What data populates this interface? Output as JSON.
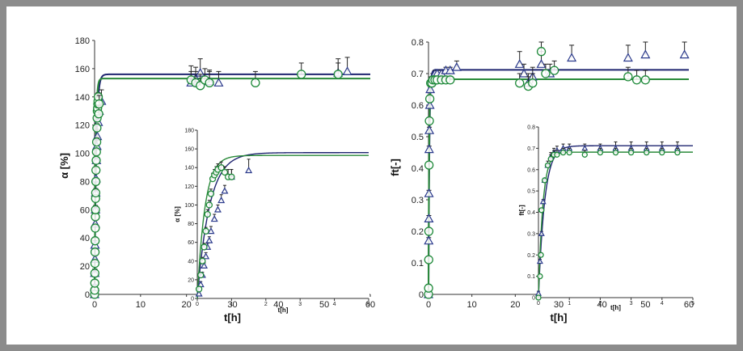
{
  "chart_data": [
    {
      "id": "alpha-main",
      "type": "scatter",
      "xlabel": "t[h]",
      "ylabel": "α [%]",
      "xlim": [
        0,
        60
      ],
      "ylim": [
        0,
        180
      ],
      "xticks": [
        "0",
        "10",
        "20",
        "30",
        "40",
        "50",
        "60"
      ],
      "yticks": [
        "0",
        "20",
        "40",
        "60",
        "80",
        "100",
        "120",
        "140",
        "160",
        "180"
      ],
      "colors": {
        "triangles": "#2b3a8c",
        "circles": "#1f8a3a",
        "fit_triangles": "#1f2470",
        "fit_circles": "#2a8a3a"
      },
      "fits": {
        "triangles": {
          "plateau": 156,
          "k": 2.8
        },
        "circles": {
          "plateau": 153,
          "k": 4.5
        }
      },
      "series": [
        {
          "marker": "triangle",
          "points": [
            [
              0,
              0
            ],
            [
              0.02,
              5
            ],
            [
              0.05,
              15
            ],
            [
              0.08,
              25
            ],
            [
              0.1,
              35
            ],
            [
              0.15,
              50
            ],
            [
              0.2,
              60
            ],
            [
              0.25,
              72
            ],
            [
              0.3,
              82
            ],
            [
              0.4,
              95
            ],
            [
              0.5,
              105
            ],
            [
              0.6,
              112
            ],
            [
              0.8,
              122
            ],
            [
              1,
              130
            ],
            [
              1.5,
              137
            ],
            [
              21,
              150
            ],
            [
              22,
              153
            ],
            [
              23,
              157
            ],
            [
              25,
              151
            ],
            [
              27,
              150
            ],
            [
              53,
              157
            ],
            [
              55,
              158
            ]
          ],
          "err": [
            0,
            2,
            3,
            3,
            3,
            3,
            3,
            3,
            4,
            4,
            4,
            5,
            5,
            5,
            8,
            8,
            8,
            10,
            8,
            8,
            10,
            10
          ]
        },
        {
          "marker": "circle",
          "points": [
            [
              0,
              0
            ],
            [
              0.02,
              3
            ],
            [
              0.04,
              8
            ],
            [
              0.06,
              15
            ],
            [
              0.08,
              22
            ],
            [
              0.1,
              30
            ],
            [
              0.12,
              38
            ],
            [
              0.15,
              47
            ],
            [
              0.18,
              55
            ],
            [
              0.2,
              60
            ],
            [
              0.22,
              68
            ],
            [
              0.25,
              72
            ],
            [
              0.28,
              80
            ],
            [
              0.3,
              88
            ],
            [
              0.35,
              95
            ],
            [
              0.4,
              101
            ],
            [
              0.45,
              108
            ],
            [
              0.5,
              118
            ],
            [
              0.55,
              125
            ],
            [
              0.6,
              130
            ],
            [
              0.65,
              132
            ],
            [
              0.7,
              135
            ],
            [
              0.75,
              137
            ],
            [
              0.8,
              140
            ],
            [
              0.9,
              128
            ],
            [
              1.0,
              135
            ],
            [
              21,
              152
            ],
            [
              22,
              150
            ],
            [
              23,
              148
            ],
            [
              24,
              152
            ],
            [
              25,
              150
            ],
            [
              35,
              150
            ],
            [
              45,
              156
            ],
            [
              53,
              156
            ]
          ],
          "err": [
            0,
            2,
            2,
            2,
            2,
            2,
            2,
            2,
            2,
            2,
            2,
            2,
            2,
            2,
            2,
            2,
            3,
            3,
            3,
            3,
            3,
            3,
            3,
            3,
            6,
            6,
            10,
            8,
            8,
            8,
            8,
            8,
            8,
            8
          ]
        }
      ]
    },
    {
      "id": "alpha-inset",
      "type": "scatter",
      "xlabel": "t[h]",
      "ylabel": "α [%]",
      "xlim": [
        0,
        5
      ],
      "ylim": [
        0,
        180
      ],
      "xticks": [
        "0",
        "1",
        "2",
        "3",
        "4",
        "5"
      ],
      "yticks": [
        "0",
        "20",
        "40",
        "60",
        "80",
        "100",
        "120",
        "140",
        "160",
        "180"
      ],
      "colors": {
        "triangles": "#2b3a8c",
        "circles": "#1f8a3a",
        "fit_triangles": "#1f2470",
        "fit_circles": "#2a8a3a"
      },
      "fits": {
        "triangles": {
          "plateau": 156,
          "k": 2.8
        },
        "circles": {
          "plateau": 153,
          "k": 4.5
        }
      },
      "series": [
        {
          "marker": "triangle",
          "points": [
            [
              0.05,
              5
            ],
            [
              0.1,
              15
            ],
            [
              0.15,
              25
            ],
            [
              0.2,
              35
            ],
            [
              0.25,
              45
            ],
            [
              0.3,
              55
            ],
            [
              0.35,
              62
            ],
            [
              0.4,
              72
            ],
            [
              0.5,
              85
            ],
            [
              0.6,
              95
            ],
            [
              0.7,
              105
            ],
            [
              0.8,
              115
            ],
            [
              1.0,
              130
            ],
            [
              1.5,
              137
            ]
          ],
          "err": [
            2,
            3,
            3,
            3,
            4,
            4,
            4,
            5,
            5,
            5,
            6,
            6,
            8,
            12
          ]
        },
        {
          "marker": "circle",
          "points": [
            [
              0.05,
              10
            ],
            [
              0.1,
              25
            ],
            [
              0.15,
              40
            ],
            [
              0.2,
              55
            ],
            [
              0.25,
              72
            ],
            [
              0.3,
              90
            ],
            [
              0.35,
              100
            ],
            [
              0.4,
              112
            ],
            [
              0.45,
              128
            ],
            [
              0.5,
              132
            ],
            [
              0.55,
              135
            ],
            [
              0.6,
              138
            ],
            [
              0.7,
              140
            ],
            [
              0.8,
              135
            ],
            [
              0.9,
              130
            ],
            [
              1.0,
              130
            ]
          ],
          "err": [
            3,
            3,
            4,
            4,
            4,
            5,
            5,
            5,
            6,
            6,
            6,
            6,
            6,
            6,
            8,
            8
          ]
        }
      ]
    },
    {
      "id": "ft-main",
      "type": "scatter",
      "xlabel": "t[h]",
      "ylabel": "ft[-]",
      "xlim": [
        0,
        60
      ],
      "ylim": [
        0,
        0.8
      ],
      "xticks": [
        "0",
        "10",
        "20",
        "30",
        "40",
        "50",
        "60"
      ],
      "yticks": [
        "0",
        "0.1",
        "0.2",
        "0.3",
        "0.4",
        "0.5",
        "0.6",
        "0.7",
        "0.8"
      ],
      "colors": {
        "triangles": "#2b3a8c",
        "circles": "#1f8a3a",
        "fit_triangles": "#1f2470",
        "fit_circles": "#2a8a3a"
      },
      "fits": {
        "triangles": {
          "plateau": 0.712,
          "k": 5.0
        },
        "circles": {
          "plateau": 0.682,
          "k": 7.0
        }
      },
      "series": [
        {
          "marker": "triangle",
          "points": [
            [
              0,
              0
            ],
            [
              0.05,
              0.17
            ],
            [
              0.08,
              0.24
            ],
            [
              0.1,
              0.32
            ],
            [
              0.15,
              0.46
            ],
            [
              0.2,
              0.52
            ],
            [
              0.3,
              0.6
            ],
            [
              0.4,
              0.65
            ],
            [
              0.6,
              0.68
            ],
            [
              1,
              0.69
            ],
            [
              1.5,
              0.7
            ],
            [
              2,
              0.7
            ],
            [
              3,
              0.7
            ],
            [
              4,
              0.71
            ],
            [
              5,
              0.71
            ],
            [
              6.5,
              0.72
            ],
            [
              21,
              0.73
            ],
            [
              22,
              0.7
            ],
            [
              23,
              0.67
            ],
            [
              24,
              0.69
            ],
            [
              26,
              0.73
            ],
            [
              28,
              0.7
            ],
            [
              33,
              0.75
            ],
            [
              46,
              0.75
            ],
            [
              50,
              0.76
            ],
            [
              59,
              0.76
            ]
          ],
          "err": [
            0,
            0.01,
            0.01,
            0.01,
            0.01,
            0.01,
            0.01,
            0.01,
            0.01,
            0.01,
            0.01,
            0.01,
            0.01,
            0.01,
            0.01,
            0.02,
            0.04,
            0.03,
            0.03,
            0.03,
            0.04,
            0.03,
            0.04,
            0.04,
            0.04,
            0.04
          ]
        },
        {
          "marker": "circle",
          "points": [
            [
              0,
              0
            ],
            [
              0.02,
              0.02
            ],
            [
              0.05,
              0.11
            ],
            [
              0.08,
              0.2
            ],
            [
              0.12,
              0.41
            ],
            [
              0.2,
              0.55
            ],
            [
              0.3,
              0.62
            ],
            [
              0.5,
              0.67
            ],
            [
              0.8,
              0.67
            ],
            [
              1,
              0.68
            ],
            [
              1.5,
              0.68
            ],
            [
              2,
              0.68
            ],
            [
              3,
              0.68
            ],
            [
              4,
              0.68
            ],
            [
              5,
              0.68
            ],
            [
              21,
              0.67
            ],
            [
              23,
              0.66
            ],
            [
              24,
              0.67
            ],
            [
              26,
              0.77
            ],
            [
              27,
              0.7
            ],
            [
              29,
              0.71
            ],
            [
              46,
              0.69
            ],
            [
              48,
              0.68
            ],
            [
              50,
              0.68
            ]
          ],
          "err": [
            0,
            0.01,
            0.01,
            0.01,
            0.01,
            0.01,
            0.01,
            0.01,
            0.01,
            0.01,
            0.01,
            0.01,
            0.01,
            0.01,
            0.01,
            0.03,
            0.03,
            0.03,
            0.04,
            0.03,
            0.03,
            0.03,
            0.03,
            0.03
          ]
        }
      ]
    },
    {
      "id": "ft-inset",
      "type": "scatter",
      "xlabel": "t[h]",
      "ylabel": "ft[-]",
      "xlim": [
        0,
        5
      ],
      "ylim": [
        0,
        0.8
      ],
      "xticks": [
        "0",
        "1",
        "2",
        "3",
        "4",
        "5"
      ],
      "yticks": [
        "0",
        "0.1",
        "0.2",
        "0.3",
        "0.4",
        "0.5",
        "0.6",
        "0.7",
        "0.8"
      ],
      "colors": {
        "triangles": "#2b3a8c",
        "circles": "#1f8a3a",
        "fit_triangles": "#1f2470",
        "fit_circles": "#2a8a3a"
      },
      "fits": {
        "triangles": {
          "plateau": 0.712,
          "k": 5.0
        },
        "circles": {
          "plateau": 0.682,
          "k": 7.0
        }
      },
      "series": [
        {
          "marker": "triangle",
          "points": [
            [
              0,
              0.02
            ],
            [
              0.05,
              0.17
            ],
            [
              0.1,
              0.3
            ],
            [
              0.15,
              0.45
            ],
            [
              0.2,
              0.55
            ],
            [
              0.3,
              0.62
            ],
            [
              0.4,
              0.66
            ],
            [
              0.5,
              0.68
            ],
            [
              0.6,
              0.69
            ],
            [
              0.8,
              0.7
            ],
            [
              1.0,
              0.7
            ],
            [
              1.5,
              0.7
            ],
            [
              2,
              0.7
            ],
            [
              2.5,
              0.7
            ],
            [
              3,
              0.7
            ],
            [
              3.5,
              0.7
            ],
            [
              4,
              0.7
            ],
            [
              4.5,
              0.7
            ]
          ],
          "err": [
            0.01,
            0.01,
            0.01,
            0.01,
            0.01,
            0.02,
            0.02,
            0.02,
            0.02,
            0.02,
            0.02,
            0.02,
            0.02,
            0.03,
            0.03,
            0.03,
            0.03,
            0.03
          ]
        },
        {
          "marker": "circle",
          "points": [
            [
              0,
              0
            ],
            [
              0.05,
              0.1
            ],
            [
              0.08,
              0.2
            ],
            [
              0.1,
              0.41
            ],
            [
              0.2,
              0.55
            ],
            [
              0.3,
              0.62
            ],
            [
              0.4,
              0.65
            ],
            [
              0.5,
              0.67
            ],
            [
              0.6,
              0.67
            ],
            [
              0.8,
              0.68
            ],
            [
              1.0,
              0.68
            ],
            [
              1.5,
              0.67
            ],
            [
              2,
              0.68
            ],
            [
              2.5,
              0.68
            ],
            [
              3,
              0.68
            ],
            [
              3.5,
              0.68
            ],
            [
              4,
              0.68
            ],
            [
              4.5,
              0.68
            ]
          ],
          "err": [
            0.01,
            0.01,
            0.01,
            0.01,
            0.01,
            0.01,
            0.02,
            0.02,
            0.02,
            0.02,
            0.02,
            0.02,
            0.02,
            0.02,
            0.02,
            0.02,
            0.02,
            0.02
          ]
        }
      ]
    }
  ]
}
